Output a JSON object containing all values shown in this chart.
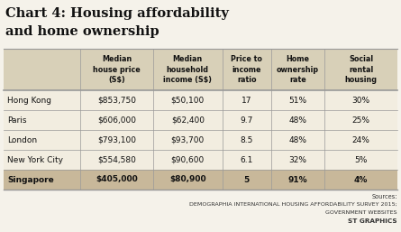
{
  "title_line1": "Chart 4: Housing affordability",
  "title_line2": "and home ownership",
  "col_headers": [
    "",
    "Median\nhouse price\n(S$)",
    "Median\nhousehold\nincome (S$)",
    "Price to\nincome\nratio",
    "Home\nownership\nrate",
    "Social\nrental\nhousing"
  ],
  "rows": [
    [
      "Hong Kong",
      "$853,750",
      "$50,100",
      "17",
      "51%",
      "30%"
    ],
    [
      "Paris",
      "$606,000",
      "$62,400",
      "9.7",
      "48%",
      "25%"
    ],
    [
      "London",
      "$793,100",
      "$93,700",
      "8.5",
      "48%",
      "24%"
    ],
    [
      "New York City",
      "$554,580",
      "$90,600",
      "6.1",
      "32%",
      "5%"
    ],
    [
      "Singapore",
      "$405,000",
      "$80,900",
      "5",
      "91%",
      "4%"
    ]
  ],
  "singapore_idx": 4,
  "sources": [
    "Sources:",
    "DEMOGRAPHIA INTERNATIONAL HOUSING AFFORDABILITY SURVEY 2015;",
    "GOVERNMENT WEBSITES",
    "ST GRAPHICS"
  ],
  "bg_light": "#f2ede0",
  "bg_header": "#d8d0b8",
  "bg_singapore": "#c8b89a",
  "bg_white": "#f5f2ea",
  "line_color": "#999999",
  "text_color": "#111111",
  "source_color": "#333333"
}
